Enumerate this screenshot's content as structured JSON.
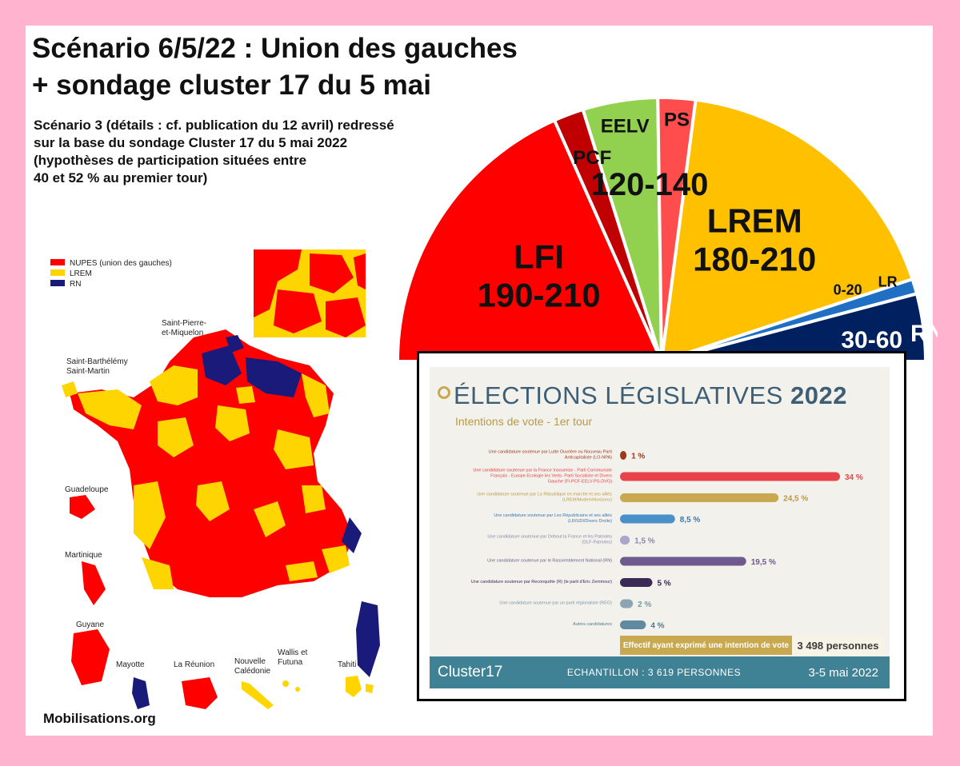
{
  "title_line1": "Scénario 6/5/22 : Union des gauches",
  "title_line2": "+ sondage cluster 17 du 5 mai",
  "subtitle_lines": [
    "Scénario 3 (détails : cf. publication du 12 avril) redressé",
    "sur la base du sondage Cluster 17 du 5 mai 2022",
    "(hypothèses de participation situées entre",
    "40 et 52 % au premier tour)"
  ],
  "footer": "Mobilisations.org",
  "chart_data": [
    {
      "type": "pie",
      "subtype": "hemicycle",
      "series": [
        {
          "name": "LFI",
          "label": "190-210",
          "seats": 200,
          "color": "#ff0000"
        },
        {
          "name": "PCF",
          "label": "",
          "seats": 20,
          "color": "#c00000"
        },
        {
          "name": "EELV",
          "label": "",
          "seats": 50,
          "color": "#92d050"
        },
        {
          "name": "PS",
          "label": "",
          "seats": 25,
          "color": "#ff4d4d"
        },
        {
          "name": "LREM",
          "label": "180-210",
          "seats": 195,
          "color": "#ffc000"
        },
        {
          "name": "LR",
          "label": "0-20",
          "seats": 10,
          "color": "#1f6fc5"
        },
        {
          "name": "RN",
          "label": "30-60",
          "seats": 45,
          "color": "#002060"
        }
      ],
      "group_label": "120-140"
    },
    {
      "type": "bar",
      "orientation": "horizontal",
      "title": "ÉLECTIONS LÉGISLATIVES",
      "title_year": "2022",
      "subtitle": "Intentions de vote - 1er tour",
      "categories": [
        "Une candidature soutenue par Lutte Ouvrière ou Nouveau Parti Anticapitaliste (LO-NPA)",
        "Une candidature soutenue par la France Insoumise - Parti Communiste Français - Europe Ecologie les Verts- Parti Socialiste et Divers Gauche (FI-PCF-EELV-PS-DVG)",
        "Une candidature soutenue par La République en marche et ses alliés (LREM/Modem/Horizons)",
        "Une candidature soutenue par Les Républicains et ses alliés (LR/UDI/Divers Droite)",
        "Une candidature soutenue par Debout la France et les Patriotes (DLF-Patriotes)",
        "Une candidature soutenue par le Rassemblement National (RN)",
        "Une candidature soutenue par Reconquête (R) (le parti d'Eric Zemmour)",
        "Une candidature soutenue par un parti régionaliste (REG)",
        "Autres candidatures"
      ],
      "values": [
        1,
        34,
        24.5,
        8.5,
        1.5,
        19.5,
        5,
        2,
        4
      ],
      "value_labels": [
        "1 %",
        "34 %",
        "24,5 %",
        "8,5 %",
        "1,5 %",
        "19,5 %",
        "5 %",
        "2 %",
        "4 %"
      ],
      "colors": [
        "#9c3a1e",
        "#e8424a",
        "#c9a950",
        "#4a90c8",
        "#a9a6c9",
        "#6e5a8e",
        "#3a2a55",
        "#8aa6b5",
        "#5f8aa0"
      ],
      "label_colors": [
        "#9c3a1e",
        "#e8424a",
        "#b89a46",
        "#3a78b0",
        "#8a87a8",
        "#6e5a8e",
        "#3a2a55",
        "#7a96a5",
        "#4f7a90"
      ],
      "xlim": [
        0,
        35
      ]
    }
  ],
  "poll": {
    "effectif_label": "Effectif ayant exprimé une intention de vote",
    "effectif_value": "3 498 personnes",
    "logo": "Cluster17",
    "sample": "ECHANTILLON : 3 619 PERSONNES",
    "date": "3-5 mai 2022"
  },
  "map": {
    "legend": [
      {
        "label": "NUPES (union des gauches)",
        "color": "#ff0000"
      },
      {
        "label": "LREM",
        "color": "#ffd500"
      },
      {
        "label": "RN",
        "color": "#1a1a7a"
      }
    ],
    "territories": {
      "saint_pierre": "Saint-Pierre-\net-Miquelon",
      "saint_barth": "Saint-Barthélémy\nSaint-Martin",
      "guadeloupe": "Guadeloupe",
      "martinique": "Martinique",
      "guyane": "Guyane",
      "mayotte": "Mayotte",
      "reunion": "La Réunion",
      "nouvelle_caledonie": "Nouvelle\nCalédonie",
      "wallis": "Wallis et\nFutuna",
      "tahiti": "Tahiti"
    }
  }
}
